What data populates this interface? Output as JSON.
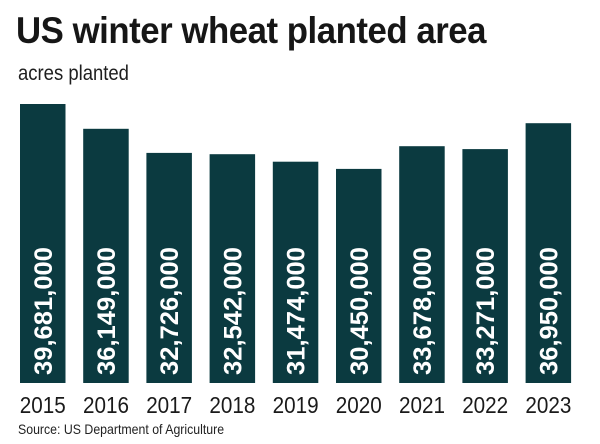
{
  "title": "US winter wheat planted area",
  "subtitle": "acres planted",
  "source": "Source: US Department of Agriculture",
  "chart_data": {
    "type": "bar",
    "title": "US winter wheat planted area",
    "subtitle": "acres planted",
    "xlabel": "",
    "ylabel": "",
    "categories": [
      "2015",
      "2016",
      "2017",
      "2018",
      "2019",
      "2020",
      "2021",
      "2022",
      "2023"
    ],
    "values": [
      39681000,
      36149000,
      32726000,
      32542000,
      31474000,
      30450000,
      33678000,
      33271000,
      36950000
    ],
    "value_labels": [
      "39,681,000",
      "36,149,000",
      "32,726,000",
      "32,542,000",
      "31,474,000",
      "30,450,000",
      "33,678,000",
      "33,271,000",
      "36,950,000"
    ],
    "ylim": [
      0,
      42000000
    ],
    "grid": false,
    "legend": "none",
    "bar_color": "#0b3a40",
    "label_color": "#ffffff"
  }
}
